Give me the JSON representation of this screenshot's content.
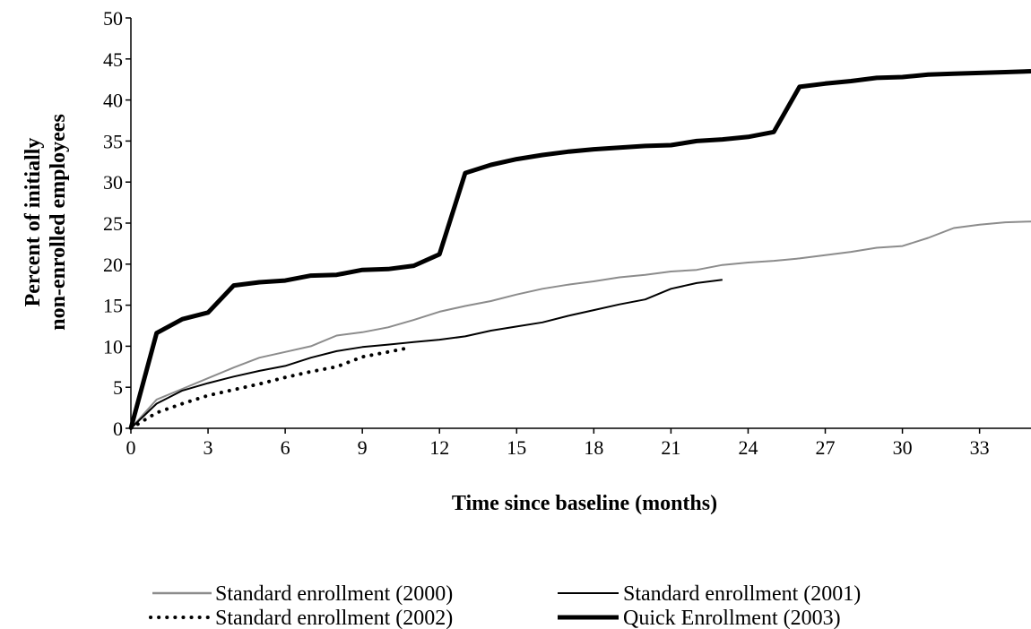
{
  "chart_data": {
    "type": "line",
    "title": "",
    "xlabel": "Time since baseline (months)",
    "ylabel_lines": [
      "Percent of initially",
      "non-enrolled employees"
    ],
    "xlim": [
      0,
      35
    ],
    "ylim": [
      0,
      50
    ],
    "x_ticks": [
      0,
      3,
      6,
      9,
      12,
      15,
      18,
      21,
      24,
      27,
      30,
      33
    ],
    "y_ticks": [
      0,
      5,
      10,
      15,
      20,
      25,
      30,
      35,
      40,
      45,
      50
    ],
    "grid": false,
    "legend_position": "bottom",
    "series": [
      {
        "name": "Standard enrollment (2000)",
        "color": "#8c8c8c",
        "style": "thin-solid",
        "x": [
          0,
          1,
          2,
          3,
          4,
          5,
          6,
          7,
          8,
          9,
          10,
          11,
          12,
          13,
          14,
          15,
          16,
          17,
          18,
          19,
          20,
          21,
          22,
          23,
          24,
          25,
          26,
          27,
          28,
          29,
          30,
          31,
          32,
          33,
          34,
          35
        ],
        "y": [
          0,
          3.5,
          4.8,
          6.1,
          7.4,
          8.6,
          9.3,
          10,
          11.3,
          11.7,
          12.3,
          13.2,
          14.2,
          14.9,
          15.5,
          16.3,
          17,
          17.5,
          17.9,
          18.4,
          18.7,
          19.1,
          19.3,
          19.9,
          20.2,
          20.4,
          20.7,
          21.1,
          21.5,
          22,
          22.2,
          23.2,
          24.4,
          24.8,
          25.1,
          25.2
        ]
      },
      {
        "name": "Standard enrollment (2001)",
        "color": "#000000",
        "style": "thin-solid",
        "x": [
          0,
          1,
          2,
          3,
          4,
          5,
          6,
          7,
          8,
          9,
          10,
          11,
          12,
          13,
          14,
          15,
          16,
          17,
          18,
          19,
          20,
          21,
          22,
          23
        ],
        "y": [
          0,
          3,
          4.6,
          5.5,
          6.3,
          7,
          7.6,
          8.6,
          9.4,
          9.9,
          10.2,
          10.5,
          10.8,
          11.2,
          11.9,
          12.4,
          12.9,
          13.7,
          14.4,
          15.1,
          15.7,
          17,
          17.7,
          18.1
        ]
      },
      {
        "name": "Standard enrollment (2002)",
        "color": "#000000",
        "style": "dotted",
        "x": [
          0,
          1,
          2,
          3,
          4,
          5,
          6,
          7,
          8,
          9,
          10,
          10.8
        ],
        "y": [
          0,
          1.9,
          3,
          4,
          4.7,
          5.4,
          6.2,
          6.9,
          7.5,
          8.7,
          9.3,
          9.8
        ]
      },
      {
        "name": "Quick Enrollment (2003)",
        "color": "#000000",
        "style": "thick-solid",
        "x": [
          0,
          1,
          2,
          3,
          4,
          5,
          6,
          7,
          8,
          9,
          10,
          11,
          12,
          13,
          14,
          15,
          16,
          17,
          18,
          19,
          20,
          21,
          22,
          23,
          24,
          25,
          26,
          27,
          28,
          29,
          30,
          31,
          32,
          33,
          34,
          35
        ],
        "y": [
          0,
          11.6,
          13.3,
          14.1,
          17.4,
          17.8,
          18,
          18.6,
          18.7,
          19.3,
          19.4,
          19.8,
          21.2,
          31.1,
          32.1,
          32.8,
          33.3,
          33.7,
          34,
          34.2,
          34.4,
          34.5,
          35,
          35.2,
          35.5,
          36.1,
          41.6,
          42,
          42.3,
          42.7,
          42.8,
          43.1,
          43.2,
          43.3,
          43.4,
          43.5
        ]
      }
    ]
  }
}
